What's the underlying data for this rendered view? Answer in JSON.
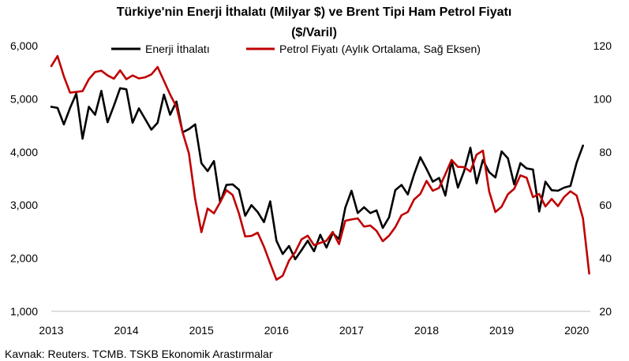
{
  "chart_data": {
    "type": "line",
    "title_line1": "Türkiye'nin Enerji İthalatı (Milyar $) ve Brent Tipi Ham Petrol Fiyatı",
    "title_line2": "($/Varil)",
    "source": "Kavnak: Reuters. TCMB. TSKB Ekonomik Arastırmalar",
    "x_ticks": [
      "2013",
      "2014",
      "2015",
      "2016",
      "2017",
      "2018",
      "2019",
      "2020"
    ],
    "x_range": [
      2013,
      2020.25
    ],
    "left_axis": {
      "ylim": [
        1000,
        6000
      ],
      "ticks": [
        "1,000",
        "2,000",
        "3,000",
        "4,000",
        "5,000",
        "6,000"
      ]
    },
    "right_axis": {
      "ylim": [
        20,
        120
      ],
      "ticks": [
        "20",
        "40",
        "60",
        "80",
        "100",
        "120"
      ]
    },
    "legend_position": "top",
    "series": [
      {
        "name": "Enerji İthalatı",
        "axis": "left",
        "color": "#000000",
        "start": "2013-01",
        "values": [
          4850,
          4830,
          4520,
          4830,
          5100,
          4250,
          4850,
          4700,
          5150,
          4560,
          4870,
          5200,
          5180,
          4550,
          4820,
          4620,
          4420,
          4550,
          5080,
          4700,
          4950,
          4370,
          4430,
          4520,
          3790,
          3640,
          3830,
          3050,
          3380,
          3390,
          3290,
          2800,
          3000,
          2870,
          2680,
          3070,
          2330,
          2080,
          2230,
          1980,
          2150,
          2330,
          2130,
          2440,
          2200,
          2470,
          2360,
          2950,
          3270,
          2850,
          2960,
          2850,
          2900,
          2570,
          2770,
          3280,
          3380,
          3200,
          3580,
          3900,
          3680,
          3440,
          3510,
          3180,
          3830,
          3330,
          3640,
          4080,
          3410,
          3850,
          3620,
          3520,
          4010,
          3880,
          3390,
          3790,
          3690,
          3670,
          2880,
          3440,
          3280,
          3270,
          3330,
          3360,
          3800,
          4120
        ],
        "label_name": "Enerji İthalatı"
      },
      {
        "name": "Petrol Fiyatı (Aylık Ortalama, Sağ Eksen)",
        "axis": "right",
        "color": "#c00000",
        "start": "2013-01",
        "values": [
          112.3,
          116.1,
          108.5,
          102.3,
          102.6,
          102.9,
          107.4,
          110.1,
          110.6,
          108.8,
          107.6,
          110.7,
          107.4,
          108.8,
          107.7,
          108.1,
          109.2,
          112.0,
          106.8,
          101.6,
          97.1,
          87.4,
          79.4,
          62.3,
          49.8,
          58.7,
          56.9,
          61.1,
          65.6,
          63.8,
          56.8,
          48.2,
          48.4,
          49.6,
          44.3,
          38.0,
          31.9,
          33.4,
          39.1,
          42.3,
          47.1,
          48.5,
          44.9,
          45.8,
          46.6,
          49.9,
          45.3,
          54.1,
          54.6,
          55.0,
          51.9,
          52.3,
          50.3,
          46.4,
          48.5,
          51.7,
          56.2,
          57.4,
          62.1,
          64.2,
          69.1,
          65.4,
          66.5,
          71.6,
          77.0,
          74.4,
          74.3,
          72.6,
          79.0,
          80.5,
          65.2,
          57.4,
          59.4,
          64.1,
          66.1,
          71.2,
          70.3,
          63.0,
          64.2,
          59.5,
          62.3,
          59.6,
          63.1,
          65.2,
          63.6,
          55.0,
          34.2
        ]
      }
    ]
  }
}
